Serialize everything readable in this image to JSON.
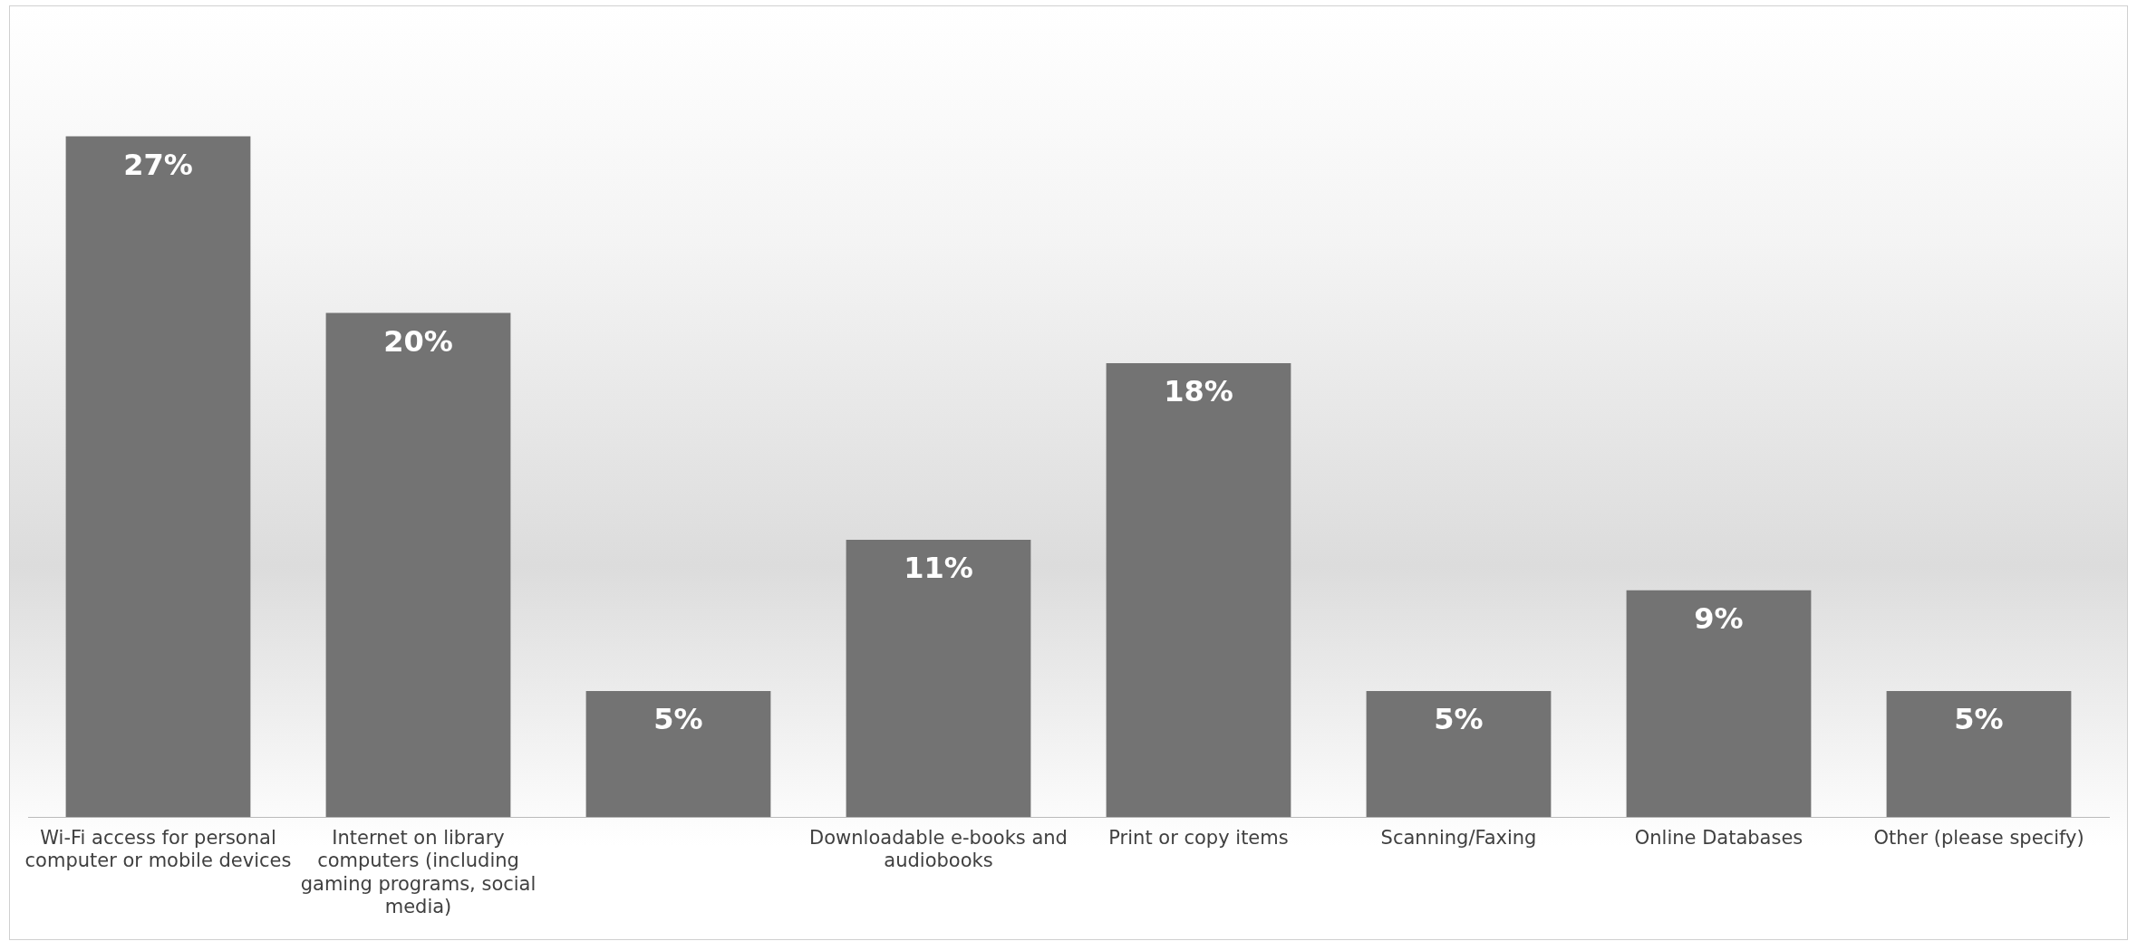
{
  "chart_data": {
    "type": "bar",
    "categories": [
      "Wi-Fi access for personal computer or mobile devices",
      "Internet on library computers (including gaming programs, social media)",
      null,
      "Downloadable e-books and audiobooks",
      "Print or copy items",
      "Scanning/Faxing",
      "Online Databases",
      "Other (please specify)"
    ],
    "values": [
      27,
      20,
      5,
      11,
      18,
      5,
      9,
      5
    ],
    "value_labels": [
      "27%",
      "20%",
      "5%",
      "11%",
      "18%",
      "5%",
      "9%",
      "5%"
    ],
    "color": "#737373",
    "grid": false,
    "legend": false
  }
}
